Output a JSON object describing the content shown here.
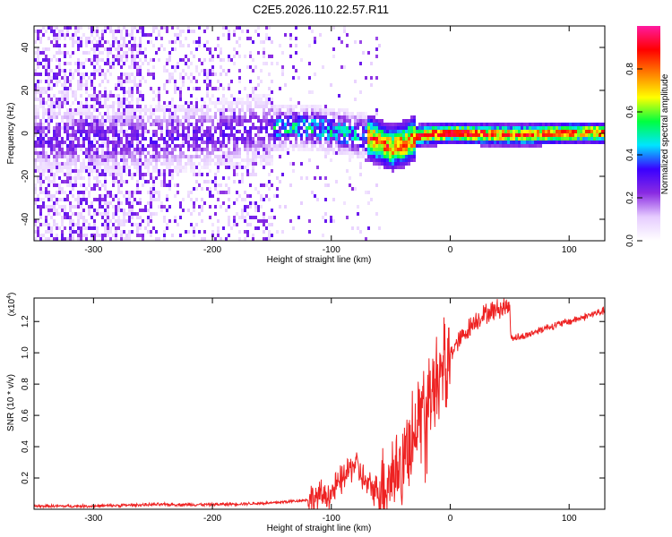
{
  "title": "C2E5.2026.110.22.57.R11",
  "chart_data": [
    {
      "type": "heatmap",
      "name": "spectrogram",
      "xlabel": "Height of straight line (km)",
      "ylabel": "Frequency (Hz)",
      "xlim": [
        -350,
        130
      ],
      "ylim": [
        -50,
        50
      ],
      "xticks": [
        -300,
        -200,
        -100,
        0,
        100
      ],
      "xtick_labels": [
        "-300",
        "-200",
        "-100",
        "0",
        "100"
      ],
      "yticks": [
        -40,
        -20,
        0,
        20,
        40
      ],
      "ytick_labels": [
        "-40",
        "-20",
        "0",
        "20",
        "40"
      ],
      "colorbar": {
        "label": "Normalized spectral amplitude",
        "range": [
          0,
          1
        ],
        "ticks": [
          0.0,
          0.2,
          0.4,
          0.6,
          0.8
        ],
        "tick_labels": [
          "0.0",
          "0.2",
          "0.4",
          "0.6",
          "0.8"
        ],
        "colors": [
          "#ffffff",
          "#e6ccff",
          "#8a2be2",
          "#3a00ff",
          "#00e5ff",
          "#00ff40",
          "#ffff00",
          "#ff8000",
          "#ff0000",
          "#ff1aa0"
        ]
      },
      "ridge_center_freq": [
        {
          "x": -250,
          "y": -2
        },
        {
          "x": -200,
          "y": 0
        },
        {
          "x": -175,
          "y": 2
        },
        {
          "x": -125,
          "y": 4
        },
        {
          "x": -75,
          "y": 0
        },
        {
          "x": -50,
          "y": -6
        },
        {
          "x": -40,
          "y": -4
        },
        {
          "x": -25,
          "y": 0
        },
        {
          "x": 0,
          "y": 1
        },
        {
          "x": 50,
          "y": 0
        },
        {
          "x": 100,
          "y": 1
        },
        {
          "x": 130,
          "y": 1
        }
      ]
    },
    {
      "type": "line",
      "name": "snr",
      "xlabel": "Height of straight line (km)",
      "ylabel": "SNR (10 * v/v)",
      "scale_note": "(x10",
      "scale_exp": "4",
      "xlim": [
        -350,
        130
      ],
      "ylim": [
        0,
        1.35
      ],
      "xticks": [
        -300,
        -200,
        -100,
        0,
        100
      ],
      "xtick_labels": [
        "-300",
        "-200",
        "-100",
        "0",
        "100"
      ],
      "yticks": [
        0.2,
        0.4,
        0.6,
        0.8,
        1.0,
        1.2
      ],
      "ytick_labels": [
        "0.2",
        "0.4",
        "0.6",
        "0.8",
        "1.0",
        "1.2"
      ],
      "color": "#ee2222",
      "series": [
        {
          "name": "SNR",
          "x": [
            -350,
            -300,
            -250,
            -200,
            -150,
            -120,
            -100,
            -90,
            -80,
            -75,
            -70,
            -60,
            -50,
            -40,
            -30,
            -20,
            -10,
            0,
            10,
            20,
            30,
            40,
            50,
            51,
            60,
            80,
            100,
            130
          ],
          "y": [
            0.02,
            0.02,
            0.03,
            0.03,
            0.04,
            0.06,
            0.1,
            0.2,
            0.3,
            0.22,
            0.15,
            0.12,
            0.22,
            0.28,
            0.55,
            0.7,
            0.85,
            1.0,
            1.1,
            1.2,
            1.25,
            1.28,
            1.3,
            1.1,
            1.1,
            1.16,
            1.2,
            1.27
          ]
        }
      ]
    }
  ]
}
